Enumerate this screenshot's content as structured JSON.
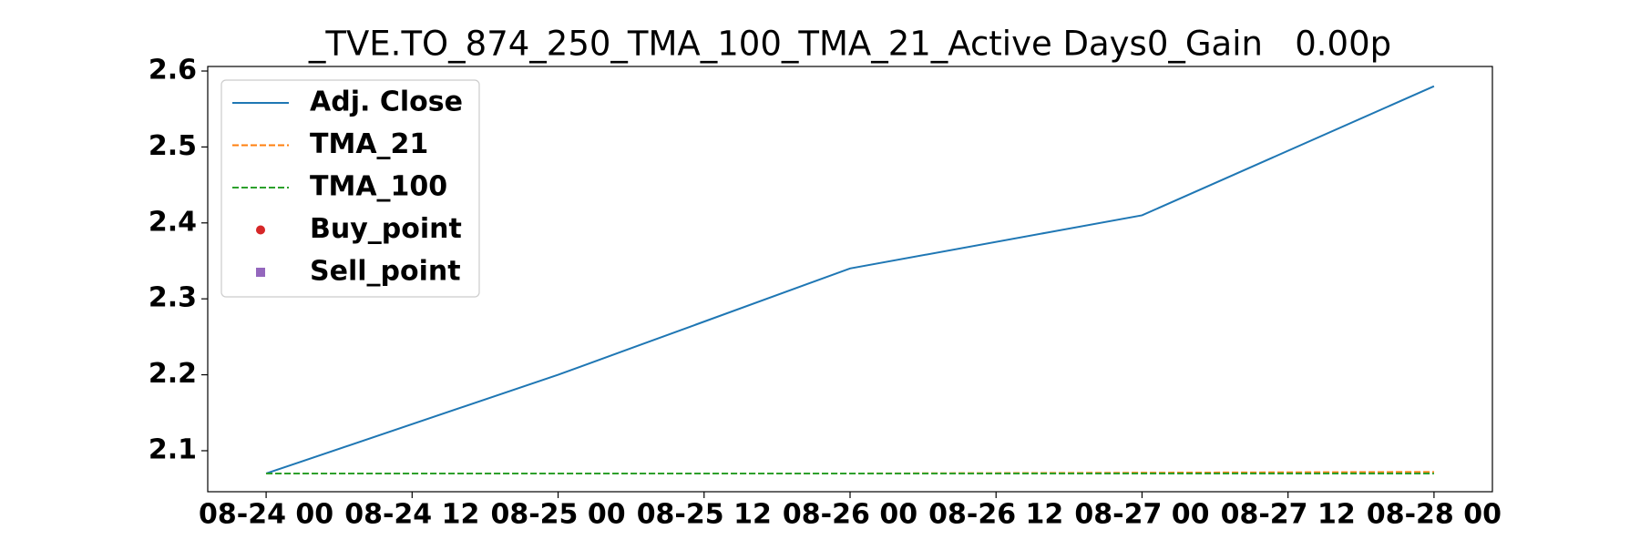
{
  "chart_data": {
    "type": "line",
    "title": "_TVE.TO_874_250_TMA_100_TMA_21_Active Days0_Gain   0.00p",
    "x": [
      "08-24 00",
      "08-25 00",
      "08-26 00",
      "08-27 00",
      "08-28 00"
    ],
    "xticks": [
      "08-24 00",
      "08-24 12",
      "08-25 00",
      "08-25 12",
      "08-26 00",
      "08-26 12",
      "08-27 00",
      "08-27 12",
      "08-28 00"
    ],
    "ylim": [
      2.046,
      2.606
    ],
    "yticks": [
      2.1,
      2.2,
      2.3,
      2.4,
      2.5,
      2.6
    ],
    "legend": "upper left",
    "series": [
      {
        "name": "Adj. Close",
        "color": "#1f77b4",
        "linestyle": "solid",
        "values": [
          2.07,
          2.2,
          2.34,
          2.41,
          2.58
        ]
      },
      {
        "name": "TMA_21",
        "color": "#ff7f0e",
        "linestyle": "dashed",
        "values": [
          2.07,
          2.07,
          2.07,
          2.071,
          2.072
        ]
      },
      {
        "name": "TMA_100",
        "color": "#2ca02c",
        "linestyle": "dashed",
        "values": [
          2.07,
          2.07,
          2.07,
          2.07,
          2.07
        ]
      },
      {
        "name": "Buy_point",
        "color": "#d62728",
        "marker": "o",
        "values": [
          null,
          null,
          null,
          null,
          null
        ]
      },
      {
        "name": "Sell_point",
        "color": "#9467bd",
        "marker": "s",
        "values": [
          null,
          null,
          null,
          null,
          null
        ]
      }
    ]
  }
}
